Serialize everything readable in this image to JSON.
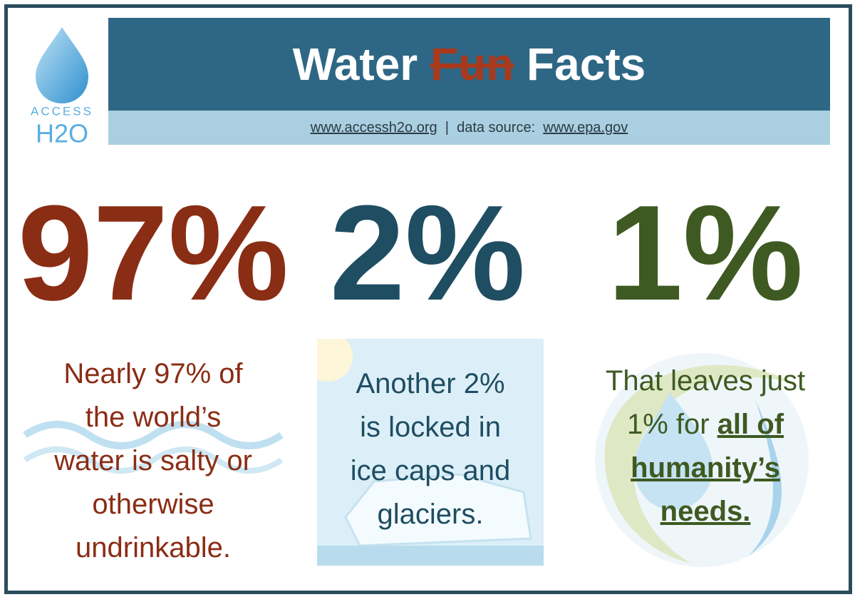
{
  "logo": {
    "top": "ACCESS",
    "bottom": "H2O"
  },
  "header": {
    "title_before": "Water",
    "title_struck": "Fun",
    "title_after": "Facts",
    "site_link": "www.accessh2o.org",
    "separator": "|",
    "source_label": "data source:",
    "source_link": "www.epa.gov"
  },
  "facts": [
    {
      "figure": "97%",
      "lines": [
        "Nearly 97% of",
        "the world’s",
        "water is salty or",
        "otherwise",
        "undrinkable."
      ]
    },
    {
      "figure": "2%",
      "lines": [
        "Another 2%",
        "is locked in",
        "ice caps and",
        "glaciers."
      ]
    },
    {
      "figure": "1%",
      "plain": "That leaves just 1% for",
      "emphasis": "all of humanity’s needs."
    }
  ]
}
